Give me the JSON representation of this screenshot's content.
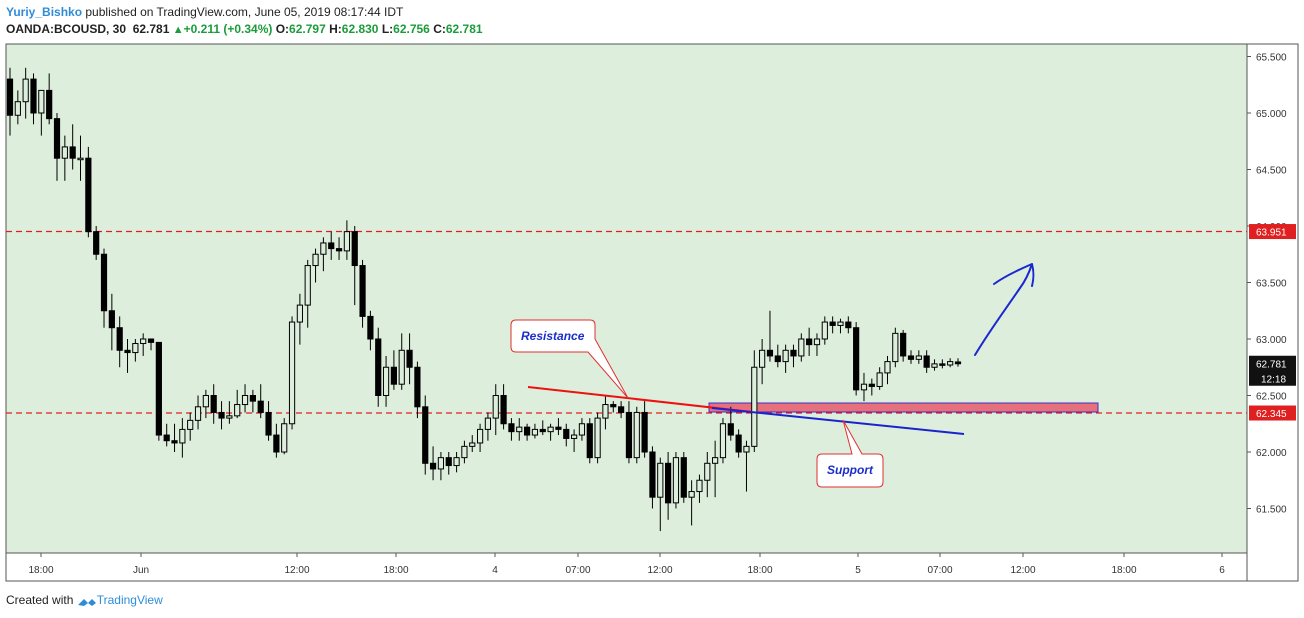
{
  "header": {
    "author": "Yuriy_Bishko",
    "published": "published on TradingView.com, June 05, 2019 08:17:44 IDT",
    "symbol": "OANDA:BCOUSD, 30",
    "last": "62.781",
    "change": "+0.211 (+0.34%)",
    "o_label": "O:",
    "o": "62.797",
    "h_label": "H:",
    "h": "62.830",
    "l_label": "L:",
    "l": "62.756",
    "c_label": "C:",
    "c": "62.781"
  },
  "footer": {
    "created": "Created with",
    "brand": "TradingView"
  },
  "colors": {
    "background": "#ddeedd",
    "candle": "#000000",
    "level_line": "#e02020",
    "resistance": "#ee1111",
    "support": "#1a24cc",
    "zone": "#e8707a",
    "arrow": "#1a28d0"
  },
  "chart_data": {
    "type": "candlestick",
    "ylim": [
      61.2,
      65.7
    ],
    "yticks": [
      "65.500",
      "65.000",
      "64.500",
      "64.000",
      "63.500",
      "63.000",
      "62.500",
      "62.000",
      "61.500"
    ],
    "xticks": [
      "18:00",
      "Jun",
      "12:00",
      "18:00",
      "4",
      "07:00",
      "12:00",
      "18:00",
      "5",
      "07:00",
      "12:00",
      "18:00",
      "6"
    ],
    "price_labels": {
      "resistance_level": "63.951",
      "current": "62.781",
      "countdown": "12:18",
      "support_level": "62.345"
    },
    "levels": [
      63.951,
      62.345
    ],
    "annotations": [
      "Resistance",
      "Support"
    ],
    "candles": [
      [
        65.3,
        65.4,
        64.8,
        64.98
      ],
      [
        64.98,
        65.2,
        64.9,
        65.1
      ],
      [
        65.1,
        65.4,
        64.95,
        65.3
      ],
      [
        65.3,
        65.35,
        64.9,
        65.0
      ],
      [
        65.0,
        65.2,
        64.8,
        65.2
      ],
      [
        65.2,
        65.35,
        64.9,
        64.95
      ],
      [
        64.95,
        65.0,
        64.4,
        64.6
      ],
      [
        64.6,
        64.8,
        64.4,
        64.7
      ],
      [
        64.7,
        64.9,
        64.5,
        64.6
      ],
      [
        64.6,
        64.8,
        64.4,
        64.6
      ],
      [
        64.6,
        64.7,
        63.9,
        63.95
      ],
      [
        63.95,
        64.0,
        63.7,
        63.75
      ],
      [
        63.75,
        63.8,
        63.1,
        63.25
      ],
      [
        63.25,
        63.4,
        62.9,
        63.1
      ],
      [
        63.1,
        63.2,
        62.75,
        62.9
      ],
      [
        62.9,
        63.0,
        62.7,
        62.88
      ],
      [
        62.88,
        63.0,
        62.8,
        62.96
      ],
      [
        62.96,
        63.05,
        62.85,
        63.0
      ],
      [
        63.0,
        63.0,
        62.9,
        62.97
      ],
      [
        62.97,
        62.97,
        62.1,
        62.15
      ],
      [
        62.15,
        62.25,
        62.05,
        62.1
      ],
      [
        62.1,
        62.25,
        62.0,
        62.08
      ],
      [
        62.08,
        62.3,
        61.95,
        62.2
      ],
      [
        62.2,
        62.35,
        62.1,
        62.28
      ],
      [
        62.28,
        62.5,
        62.2,
        62.4
      ],
      [
        62.4,
        62.55,
        62.3,
        62.5
      ],
      [
        62.5,
        62.6,
        62.25,
        62.35
      ],
      [
        62.35,
        62.45,
        62.2,
        62.3
      ],
      [
        62.3,
        62.45,
        62.25,
        62.32
      ],
      [
        62.32,
        62.55,
        62.3,
        62.42
      ],
      [
        62.42,
        62.6,
        62.35,
        62.5
      ],
      [
        62.5,
        62.55,
        62.35,
        62.45
      ],
      [
        62.45,
        62.6,
        62.3,
        62.35
      ],
      [
        62.35,
        62.45,
        62.1,
        62.15
      ],
      [
        62.15,
        62.25,
        61.95,
        62.0
      ],
      [
        62.0,
        62.3,
        61.98,
        62.25
      ],
      [
        62.25,
        63.2,
        62.2,
        63.15
      ],
      [
        63.15,
        63.4,
        62.95,
        63.3
      ],
      [
        63.3,
        63.7,
        63.1,
        63.65
      ],
      [
        63.65,
        63.8,
        63.5,
        63.75
      ],
      [
        63.75,
        63.9,
        63.6,
        63.85
      ],
      [
        63.85,
        63.95,
        63.7,
        63.8
      ],
      [
        63.8,
        63.9,
        63.7,
        63.78
      ],
      [
        63.78,
        64.05,
        63.7,
        63.95
      ],
      [
        63.95,
        64.0,
        63.3,
        63.65
      ],
      [
        63.65,
        63.7,
        63.1,
        63.2
      ],
      [
        63.2,
        63.25,
        62.9,
        63.0
      ],
      [
        63.0,
        63.1,
        62.4,
        62.5
      ],
      [
        62.5,
        62.85,
        62.4,
        62.75
      ],
      [
        62.75,
        62.9,
        62.55,
        62.6
      ],
      [
        62.6,
        63.05,
        62.55,
        62.9
      ],
      [
        62.9,
        63.05,
        62.6,
        62.75
      ],
      [
        62.75,
        62.8,
        62.3,
        62.4
      ],
      [
        62.4,
        62.5,
        61.8,
        61.9
      ],
      [
        61.9,
        62.05,
        61.75,
        61.85
      ],
      [
        61.85,
        62.0,
        61.75,
        61.95
      ],
      [
        61.95,
        62.0,
        61.8,
        61.88
      ],
      [
        61.88,
        62.0,
        61.82,
        61.95
      ],
      [
        61.95,
        62.1,
        61.9,
        62.05
      ],
      [
        62.05,
        62.15,
        62.0,
        62.08
      ],
      [
        62.08,
        62.25,
        62.0,
        62.2
      ],
      [
        62.2,
        62.35,
        62.1,
        62.3
      ],
      [
        62.3,
        62.6,
        62.15,
        62.5
      ],
      [
        62.5,
        62.6,
        62.2,
        62.25
      ],
      [
        62.25,
        62.3,
        62.1,
        62.18
      ],
      [
        62.18,
        62.3,
        62.1,
        62.22
      ],
      [
        62.22,
        62.25,
        62.1,
        62.15
      ],
      [
        62.15,
        62.25,
        62.12,
        62.2
      ],
      [
        62.2,
        62.28,
        62.15,
        62.18
      ],
      [
        62.18,
        62.25,
        62.1,
        62.22
      ],
      [
        62.22,
        62.3,
        62.15,
        62.2
      ],
      [
        62.2,
        62.25,
        62.05,
        62.12
      ],
      [
        62.12,
        62.2,
        62.0,
        62.15
      ],
      [
        62.15,
        62.3,
        62.1,
        62.25
      ],
      [
        62.25,
        62.3,
        61.9,
        61.95
      ],
      [
        61.95,
        62.35,
        61.9,
        62.3
      ],
      [
        62.3,
        62.5,
        62.2,
        62.42
      ],
      [
        62.42,
        62.45,
        62.35,
        62.4
      ],
      [
        62.4,
        62.45,
        62.3,
        62.35
      ],
      [
        62.35,
        62.45,
        61.9,
        61.95
      ],
      [
        61.95,
        62.4,
        61.9,
        62.35
      ],
      [
        62.35,
        62.45,
        61.95,
        62.0
      ],
      [
        62.0,
        62.05,
        61.5,
        61.6
      ],
      [
        61.6,
        61.95,
        61.3,
        61.9
      ],
      [
        61.9,
        62.0,
        61.4,
        61.55
      ],
      [
        61.55,
        62.0,
        61.5,
        61.95
      ],
      [
        61.95,
        62.0,
        61.55,
        61.6
      ],
      [
        61.6,
        61.75,
        61.35,
        61.65
      ],
      [
        61.65,
        61.8,
        61.55,
        61.75
      ],
      [
        61.75,
        62.0,
        61.6,
        61.9
      ],
      [
        61.9,
        62.1,
        61.6,
        61.95
      ],
      [
        61.95,
        62.3,
        61.9,
        62.25
      ],
      [
        62.25,
        62.4,
        62.1,
        62.15
      ],
      [
        62.15,
        62.2,
        61.95,
        62.0
      ],
      [
        62.0,
        62.1,
        61.65,
        62.05
      ],
      [
        62.05,
        62.9,
        62.0,
        62.75
      ],
      [
        62.75,
        63.0,
        62.6,
        62.9
      ],
      [
        62.9,
        63.25,
        62.8,
        62.85
      ],
      [
        62.85,
        62.95,
        62.75,
        62.8
      ],
      [
        62.8,
        62.95,
        62.7,
        62.9
      ],
      [
        62.9,
        62.95,
        62.75,
        62.85
      ],
      [
        62.85,
        63.05,
        62.8,
        63.0
      ],
      [
        63.0,
        63.1,
        62.85,
        62.95
      ],
      [
        62.95,
        63.05,
        62.85,
        63.0
      ],
      [
        63.0,
        63.2,
        62.95,
        63.15
      ],
      [
        63.15,
        63.2,
        63.05,
        63.12
      ],
      [
        63.12,
        63.18,
        63.05,
        63.15
      ],
      [
        63.15,
        63.2,
        63.05,
        63.1
      ],
      [
        63.1,
        63.15,
        62.5,
        62.55
      ],
      [
        62.55,
        62.7,
        62.45,
        62.6
      ],
      [
        62.6,
        62.65,
        62.5,
        62.58
      ],
      [
        62.58,
        62.75,
        62.55,
        62.7
      ],
      [
        62.7,
        62.85,
        62.6,
        62.8
      ],
      [
        62.8,
        63.1,
        62.75,
        63.05
      ],
      [
        63.05,
        63.08,
        62.8,
        62.85
      ],
      [
        62.85,
        62.9,
        62.78,
        62.82
      ],
      [
        62.82,
        62.9,
        62.78,
        62.85
      ],
      [
        62.85,
        62.9,
        62.7,
        62.75
      ],
      [
        62.75,
        62.82,
        62.72,
        62.78
      ],
      [
        62.78,
        62.82,
        62.74,
        62.77
      ],
      [
        62.77,
        62.83,
        62.75,
        62.8
      ],
      [
        62.797,
        62.83,
        62.756,
        62.781
      ]
    ]
  }
}
